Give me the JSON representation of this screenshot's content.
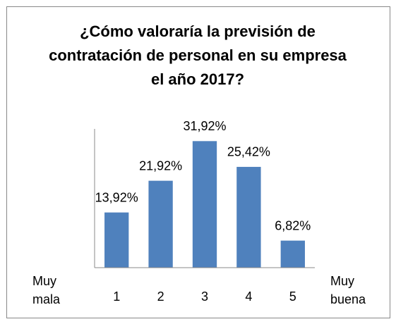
{
  "chart_data": {
    "type": "bar",
    "title": "¿Cómo valoraría la previsión de contratación de personal en su empresa el año 2017?",
    "categories": [
      "1",
      "2",
      "3",
      "4",
      "5"
    ],
    "values": [
      13.92,
      21.92,
      31.92,
      25.42,
      6.82
    ],
    "value_labels": [
      "13,92%",
      "21,92%",
      "31,92%",
      "25,42%",
      "6,82%"
    ],
    "color": "#4f81bd",
    "ylim": [
      0,
      35
    ],
    "annotations": [
      "Muy mala",
      "Muy buena"
    ]
  }
}
